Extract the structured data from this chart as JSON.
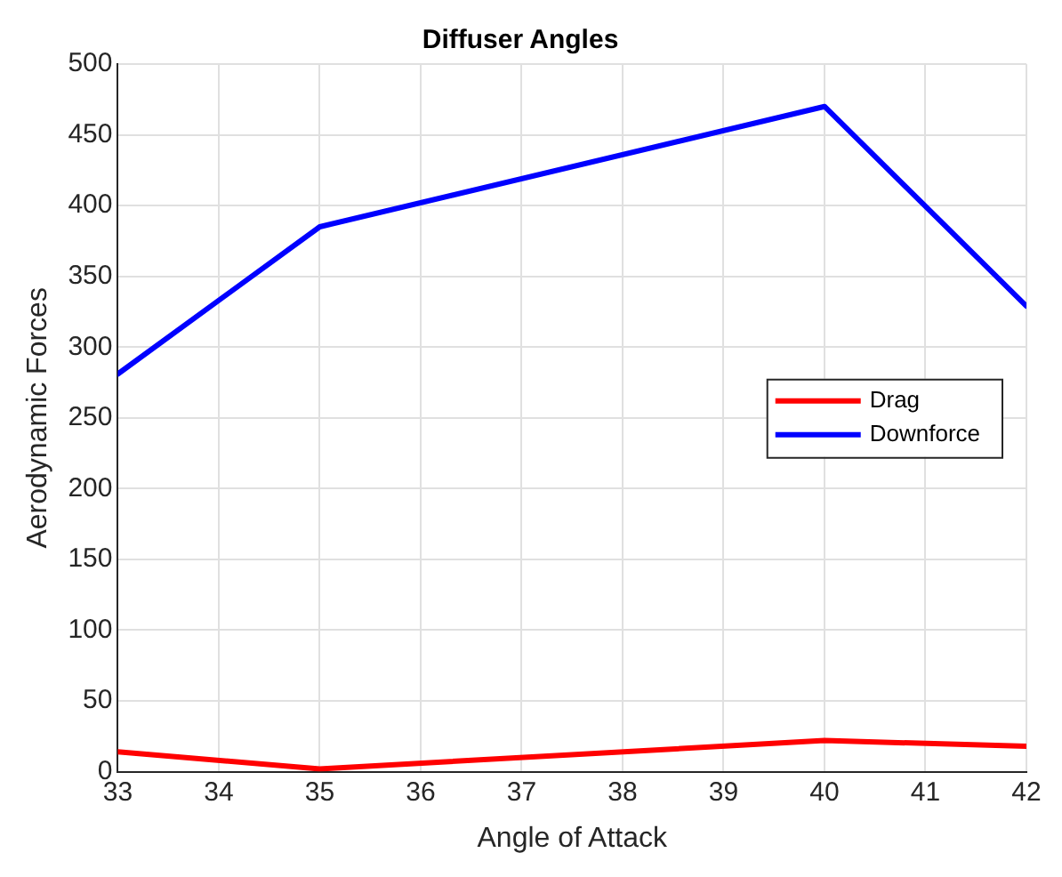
{
  "chart_data": {
    "type": "line",
    "title": "Diffuser Angles",
    "xlabel": "Angle of Attack",
    "ylabel": "Aerodynamic Forces",
    "x": [
      33,
      35,
      40,
      42
    ],
    "series": [
      {
        "name": "Drag",
        "color": "#ff0000",
        "values": [
          14,
          2,
          22,
          18
        ]
      },
      {
        "name": "Downforce",
        "color": "#0000ff",
        "values": [
          281,
          385,
          470,
          329
        ]
      }
    ],
    "xlim": [
      33,
      42
    ],
    "xticks": [
      33,
      34,
      35,
      36,
      37,
      38,
      39,
      40,
      41,
      42
    ],
    "ylim": [
      0,
      500
    ],
    "yticks": [
      0,
      50,
      100,
      150,
      200,
      250,
      300,
      350,
      400,
      450,
      500
    ],
    "grid": true,
    "legend": "right",
    "marker": "none",
    "line_style": "solid"
  }
}
